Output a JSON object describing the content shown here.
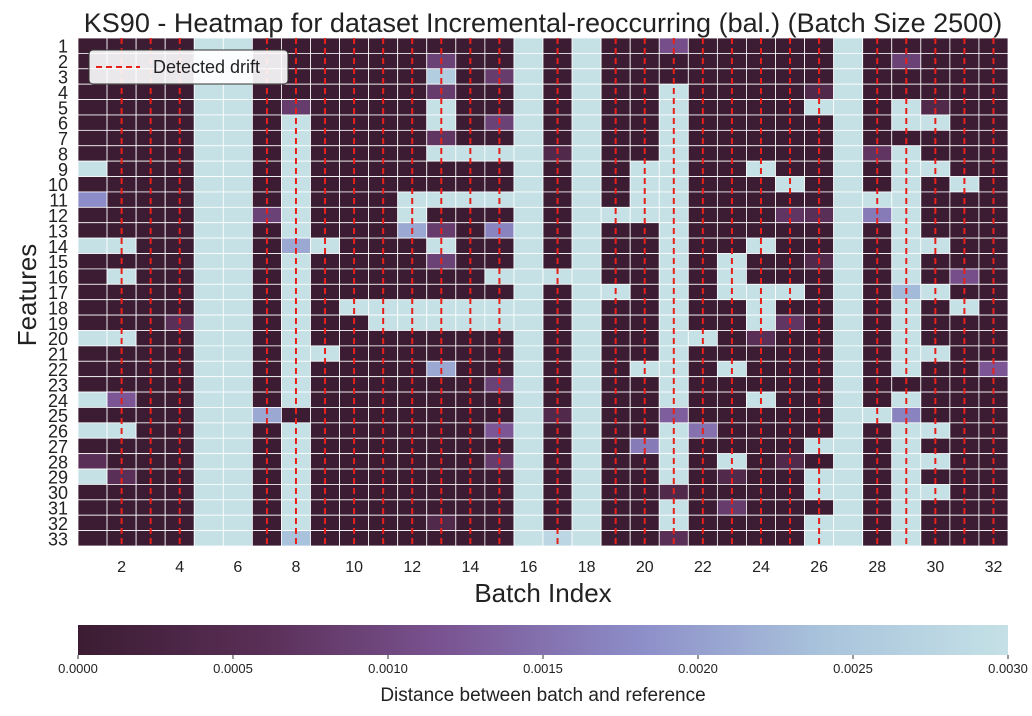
{
  "chart_data": {
    "type": "heatmap",
    "title": "KS90 - Heatmap for dataset Incremental-reoccurring (bal.) (Batch Size 2500)",
    "xlabel": "Batch Index",
    "ylabel": "Features",
    "x_categories": [
      1,
      2,
      3,
      4,
      5,
      6,
      7,
      8,
      9,
      10,
      11,
      12,
      13,
      14,
      15,
      16,
      17,
      18,
      19,
      20,
      21,
      22,
      23,
      24,
      25,
      26,
      27,
      28,
      29,
      30,
      31,
      32
    ],
    "x_tick_labels": [
      "2",
      "4",
      "6",
      "8",
      "10",
      "12",
      "14",
      "16",
      "18",
      "20",
      "22",
      "24",
      "26",
      "28",
      "30",
      "32"
    ],
    "y_categories": [
      "1",
      "2",
      "3",
      "4",
      "5",
      "6",
      "7",
      "8",
      "9",
      "10",
      "11",
      "12",
      "13",
      "14",
      "15",
      "16",
      "17",
      "18",
      "19",
      "20",
      "21",
      "22",
      "23",
      "24",
      "25",
      "26",
      "27",
      "28",
      "29",
      "30",
      "31",
      "32",
      "33"
    ],
    "color_scale": {
      "label": "Distance between batch and reference",
      "min": 0.0,
      "max": 0.003,
      "tick_labels": [
        "0.0000",
        "0.0005",
        "0.0010",
        "0.0015",
        "0.0020",
        "0.0025",
        "0.0030"
      ],
      "colors": [
        "#3b1c32",
        "#5a2f57",
        "#7b5594",
        "#8c8dc8",
        "#a9c3dc",
        "#c5e1e6"
      ],
      "orientation": "horizontal"
    },
    "legend": {
      "placement": "top-left",
      "entries": [
        "Detected drift"
      ]
    },
    "drift_color": "#e8201a",
    "detected_drift_batches": [
      2,
      3,
      4,
      7,
      8,
      9,
      10,
      11,
      12,
      13,
      14,
      15,
      17,
      19,
      20,
      21,
      22,
      23,
      24,
      25,
      26,
      28,
      29,
      30,
      31,
      32
    ],
    "grid": true,
    "values": [
      [
        0.0,
        0.0,
        0.0,
        0.0,
        0.003,
        0.003,
        0.0,
        0.0,
        0.0,
        0.0,
        0.0,
        0.0,
        0.0,
        0.0,
        0.0,
        0.003,
        0.0,
        0.003,
        0.0,
        0.0,
        0.0011,
        0.0,
        0.0,
        0.0,
        0.0,
        0.0,
        0.003,
        0.0,
        0.0,
        0.0,
        0.0,
        0.0
      ],
      [
        0.0,
        0.0,
        0.0,
        0.0,
        0.003,
        0.003,
        0.0,
        0.0,
        0.0,
        0.0,
        0.0,
        0.0,
        0.0009,
        0.0,
        0.0,
        0.003,
        0.0,
        0.003,
        0.0,
        0.0,
        0.0,
        0.0,
        0.0,
        0.0,
        0.0,
        0.0,
        0.003,
        0.0,
        0.0009,
        0.0,
        0.0,
        0.0
      ],
      [
        0.0,
        0.0,
        0.0,
        0.0,
        0.003,
        0.003,
        0.0,
        0.0,
        0.0,
        0.0,
        0.0,
        0.0,
        0.0026,
        0.0,
        0.0008,
        0.003,
        0.0,
        0.003,
        0.0,
        0.0,
        0.0,
        0.0,
        0.0,
        0.0,
        0.0,
        0.0,
        0.003,
        0.0,
        0.0,
        0.0,
        0.0,
        0.0
      ],
      [
        0.0,
        0.0,
        0.0,
        0.0,
        0.003,
        0.003,
        0.0,
        0.0,
        0.0,
        0.0,
        0.0,
        0.0,
        0.0008,
        0.0,
        0.0,
        0.003,
        0.0,
        0.003,
        0.0,
        0.0,
        0.003,
        0.0,
        0.0,
        0.0,
        0.0,
        0.0004,
        0.003,
        0.0,
        0.0,
        0.0,
        0.0,
        0.0
      ],
      [
        0.0,
        0.0,
        0.0,
        0.0,
        0.003,
        0.003,
        0.0,
        0.0008,
        0.0,
        0.0,
        0.0,
        0.0,
        0.003,
        0.0,
        0.0,
        0.003,
        0.0,
        0.003,
        0.0,
        0.0,
        0.003,
        0.0,
        0.0,
        0.0,
        0.0,
        0.003,
        0.003,
        0.0,
        0.003,
        0.0004,
        0.0,
        0.0
      ],
      [
        0.0,
        0.0,
        0.0,
        0.0,
        0.003,
        0.003,
        0.0,
        0.003,
        0.0,
        0.0,
        0.0,
        0.0,
        0.003,
        0.0,
        0.0009,
        0.003,
        0.0,
        0.003,
        0.0,
        0.0,
        0.003,
        0.0,
        0.0,
        0.0,
        0.0,
        0.0,
        0.003,
        0.0,
        0.003,
        0.003,
        0.0,
        0.0
      ],
      [
        0.0,
        0.0,
        0.0,
        0.0,
        0.003,
        0.003,
        0.0,
        0.003,
        0.0,
        0.0,
        0.0,
        0.0,
        0.0007,
        0.0,
        0.0,
        0.003,
        0.0,
        0.003,
        0.0,
        0.0,
        0.003,
        0.0,
        0.0,
        0.0,
        0.0,
        0.0,
        0.003,
        0.0,
        0.0,
        0.0,
        0.0,
        0.0
      ],
      [
        0.0,
        0.0,
        0.0,
        0.0,
        0.003,
        0.003,
        0.0,
        0.003,
        0.0,
        0.0,
        0.0,
        0.0,
        0.003,
        0.003,
        0.003,
        0.003,
        0.0004,
        0.003,
        0.0,
        0.0,
        0.003,
        0.0,
        0.0,
        0.0,
        0.0,
        0.0,
        0.003,
        0.0007,
        0.003,
        0.0,
        0.0,
        0.0
      ],
      [
        0.003,
        0.0,
        0.0,
        0.0,
        0.003,
        0.003,
        0.0,
        0.003,
        0.0,
        0.0,
        0.0,
        0.0,
        0.0,
        0.0,
        0.0,
        0.003,
        0.0,
        0.003,
        0.0,
        0.003,
        0.003,
        0.0,
        0.0,
        0.003,
        0.0,
        0.0,
        0.003,
        0.0,
        0.003,
        0.003,
        0.0,
        0.0
      ],
      [
        0.0,
        0.0,
        0.0,
        0.0,
        0.003,
        0.003,
        0.0,
        0.003,
        0.0,
        0.0,
        0.0,
        0.0,
        0.0,
        0.0,
        0.0,
        0.003,
        0.0,
        0.003,
        0.0,
        0.003,
        0.003,
        0.0,
        0.0,
        0.0,
        0.003,
        0.0,
        0.003,
        0.0,
        0.003,
        0.0,
        0.003,
        0.0
      ],
      [
        0.0018,
        0.0,
        0.0,
        0.0,
        0.003,
        0.003,
        0.0,
        0.003,
        0.0,
        0.0,
        0.0,
        0.003,
        0.003,
        0.003,
        0.003,
        0.003,
        0.0,
        0.003,
        0.0,
        0.003,
        0.003,
        0.0,
        0.0,
        0.0,
        0.0,
        0.0,
        0.003,
        0.003,
        0.003,
        0.0,
        0.0,
        0.0
      ],
      [
        0.0,
        0.0,
        0.0,
        0.0,
        0.003,
        0.003,
        0.0009,
        0.003,
        0.0,
        0.0,
        0.0,
        0.003,
        0.0,
        0.0,
        0.0,
        0.003,
        0.0,
        0.003,
        0.003,
        0.003,
        0.003,
        0.0,
        0.0,
        0.0,
        0.0007,
        0.0006,
        0.003,
        0.0016,
        0.003,
        0.0,
        0.0,
        0.0
      ],
      [
        0.0,
        0.0,
        0.0,
        0.0,
        0.003,
        0.003,
        0.0,
        0.003,
        0.0,
        0.0,
        0.0,
        0.0021,
        0.0008,
        0.0,
        0.0017,
        0.003,
        0.0,
        0.003,
        0.0,
        0.0,
        0.003,
        0.0,
        0.0,
        0.0,
        0.0,
        0.0,
        0.003,
        0.0,
        0.003,
        0.0,
        0.0,
        0.0
      ],
      [
        0.003,
        0.003,
        0.0,
        0.0,
        0.003,
        0.003,
        0.0,
        0.0021,
        0.003,
        0.0,
        0.0,
        0.0,
        0.003,
        0.0,
        0.0,
        0.003,
        0.0,
        0.003,
        0.0,
        0.0,
        0.003,
        0.0,
        0.0,
        0.003,
        0.0,
        0.0,
        0.003,
        0.0,
        0.003,
        0.003,
        0.0,
        0.0
      ],
      [
        0.0,
        0.0,
        0.0,
        0.0,
        0.003,
        0.003,
        0.0,
        0.003,
        0.0,
        0.0,
        0.0,
        0.0,
        0.0009,
        0.0,
        0.0,
        0.003,
        0.0,
        0.003,
        0.0,
        0.0,
        0.003,
        0.0,
        0.003,
        0.0,
        0.0,
        0.0004,
        0.003,
        0.0,
        0.003,
        0.0,
        0.0,
        0.0
      ],
      [
        0.0,
        0.003,
        0.0,
        0.0,
        0.003,
        0.003,
        0.0,
        0.003,
        0.0,
        0.0,
        0.0,
        0.0,
        0.0,
        0.0,
        0.003,
        0.003,
        0.003,
        0.003,
        0.0,
        0.0,
        0.003,
        0.0,
        0.003,
        0.0,
        0.0,
        0.0,
        0.003,
        0.0,
        0.003,
        0.0,
        0.0011,
        0.0
      ],
      [
        0.0,
        0.0,
        0.0,
        0.0,
        0.003,
        0.003,
        0.0,
        0.003,
        0.0,
        0.0,
        0.0,
        0.0,
        0.0,
        0.0,
        0.0,
        0.003,
        0.0,
        0.003,
        0.003,
        0.0,
        0.003,
        0.0,
        0.003,
        0.003,
        0.003,
        0.0,
        0.003,
        0.0,
        0.0023,
        0.003,
        0.0,
        0.0
      ],
      [
        0.0,
        0.0,
        0.0,
        0.0,
        0.003,
        0.003,
        0.0,
        0.003,
        0.0,
        0.003,
        0.003,
        0.003,
        0.003,
        0.003,
        0.003,
        0.003,
        0.0,
        0.003,
        0.0,
        0.0,
        0.003,
        0.0,
        0.0,
        0.003,
        0.0,
        0.0,
        0.003,
        0.0,
        0.003,
        0.0,
        0.003,
        0.0
      ],
      [
        0.0,
        0.0,
        0.0,
        0.0006,
        0.003,
        0.003,
        0.0,
        0.003,
        0.0,
        0.0,
        0.003,
        0.003,
        0.003,
        0.003,
        0.003,
        0.003,
        0.0,
        0.003,
        0.0,
        0.0,
        0.003,
        0.0,
        0.0,
        0.003,
        0.0007,
        0.0,
        0.003,
        0.0,
        0.003,
        0.0,
        0.0,
        0.0
      ],
      [
        0.003,
        0.003,
        0.0,
        0.0,
        0.003,
        0.003,
        0.0,
        0.003,
        0.0,
        0.0,
        0.0,
        0.0,
        0.0,
        0.0,
        0.0,
        0.003,
        0.0,
        0.003,
        0.0,
        0.0,
        0.003,
        0.003,
        0.0,
        0.0006,
        0.0,
        0.0,
        0.003,
        0.0,
        0.003,
        0.0,
        0.0,
        0.0
      ],
      [
        0.0,
        0.0,
        0.0,
        0.0,
        0.003,
        0.003,
        0.0,
        0.003,
        0.003,
        0.0,
        0.0,
        0.0,
        0.0,
        0.0,
        0.0,
        0.003,
        0.0,
        0.003,
        0.0,
        0.0,
        0.003,
        0.0,
        0.0,
        0.0,
        0.0,
        0.0,
        0.003,
        0.0,
        0.003,
        0.003,
        0.0,
        0.0
      ],
      [
        0.0,
        0.0,
        0.0,
        0.0,
        0.003,
        0.003,
        0.0,
        0.003,
        0.0,
        0.0,
        0.0,
        0.0,
        0.0021,
        0.0,
        0.0,
        0.003,
        0.0,
        0.003,
        0.0,
        0.003,
        0.003,
        0.0,
        0.003,
        0.0,
        0.0,
        0.0,
        0.003,
        0.0,
        0.003,
        0.0,
        0.0,
        0.0012
      ],
      [
        0.0,
        0.0,
        0.0,
        0.0,
        0.003,
        0.003,
        0.0,
        0.003,
        0.0,
        0.0,
        0.0,
        0.0,
        0.0,
        0.0,
        0.0009,
        0.003,
        0.0,
        0.003,
        0.0,
        0.0,
        0.003,
        0.0,
        0.0,
        0.0,
        0.0,
        0.0,
        0.003,
        0.0,
        0.0,
        0.0,
        0.0,
        0.0
      ],
      [
        0.003,
        0.0012,
        0.0,
        0.0,
        0.003,
        0.003,
        0.0,
        0.003,
        0.0,
        0.0,
        0.0,
        0.0,
        0.0,
        0.0,
        0.0,
        0.003,
        0.0,
        0.003,
        0.0,
        0.0,
        0.003,
        0.0,
        0.0,
        0.003,
        0.0,
        0.0,
        0.003,
        0.0,
        0.003,
        0.0,
        0.0,
        0.0
      ],
      [
        0.0,
        0.0,
        0.0,
        0.0,
        0.003,
        0.003,
        0.0021,
        0.0,
        0.0,
        0.0,
        0.0,
        0.0,
        0.0,
        0.0,
        0.0,
        0.003,
        0.0004,
        0.003,
        0.0,
        0.0,
        0.0013,
        0.0,
        0.0,
        0.0,
        0.0,
        0.0,
        0.003,
        0.003,
        0.0017,
        0.0,
        0.0,
        0.0
      ],
      [
        0.003,
        0.003,
        0.0,
        0.0,
        0.003,
        0.003,
        0.0,
        0.003,
        0.0,
        0.0,
        0.0,
        0.0,
        0.0,
        0.0,
        0.0012,
        0.003,
        0.0,
        0.003,
        0.0,
        0.0,
        0.003,
        0.0015,
        0.0,
        0.0,
        0.0,
        0.0,
        0.003,
        0.0,
        0.003,
        0.003,
        0.0,
        0.0
      ],
      [
        0.0,
        0.0,
        0.0,
        0.0,
        0.003,
        0.003,
        0.0,
        0.003,
        0.0,
        0.0,
        0.0,
        0.0,
        0.0,
        0.0,
        0.0,
        0.003,
        0.0,
        0.003,
        0.0,
        0.0016,
        0.003,
        0.0,
        0.0,
        0.0,
        0.0,
        0.003,
        0.003,
        0.0,
        0.003,
        0.0,
        0.0,
        0.0
      ],
      [
        0.0006,
        0.0,
        0.0,
        0.0,
        0.003,
        0.003,
        0.0,
        0.003,
        0.0,
        0.0,
        0.0,
        0.0,
        0.0,
        0.0,
        0.0008,
        0.003,
        0.0,
        0.003,
        0.0,
        0.0,
        0.003,
        0.0,
        0.003,
        0.0,
        0.0004,
        0.0,
        0.003,
        0.0,
        0.003,
        0.003,
        0.0,
        0.0
      ],
      [
        0.003,
        0.0006,
        0.0,
        0.0,
        0.003,
        0.003,
        0.0,
        0.003,
        0.0,
        0.0,
        0.0,
        0.0,
        0.0,
        0.0,
        0.0,
        0.003,
        0.0,
        0.003,
        0.0,
        0.0,
        0.003,
        0.0,
        0.0004,
        0.0,
        0.0,
        0.003,
        0.003,
        0.0,
        0.003,
        0.0,
        0.0,
        0.0
      ],
      [
        0.0,
        0.0,
        0.0,
        0.0,
        0.003,
        0.003,
        0.0,
        0.003,
        0.0,
        0.0,
        0.0,
        0.0,
        0.0,
        0.0,
        0.0,
        0.003,
        0.0,
        0.003,
        0.0,
        0.0,
        0.0004,
        0.0,
        0.0,
        0.0,
        0.0,
        0.003,
        0.003,
        0.0,
        0.003,
        0.003,
        0.0,
        0.0
      ],
      [
        0.0,
        0.0,
        0.0,
        0.0,
        0.003,
        0.003,
        0.0,
        0.003,
        0.0,
        0.0,
        0.0,
        0.0,
        0.0,
        0.0,
        0.0,
        0.003,
        0.0,
        0.003,
        0.0,
        0.0,
        0.003,
        0.0,
        0.0008,
        0.0,
        0.0,
        0.0,
        0.003,
        0.0,
        0.003,
        0.0,
        0.0,
        0.0
      ],
      [
        0.0,
        0.0,
        0.0,
        0.0,
        0.003,
        0.003,
        0.0,
        0.003,
        0.0,
        0.0,
        0.0,
        0.0,
        0.0004,
        0.0,
        0.0,
        0.003,
        0.0,
        0.003,
        0.0,
        0.0,
        0.003,
        0.0,
        0.0,
        0.0,
        0.0,
        0.003,
        0.003,
        0.0,
        0.003,
        0.0,
        0.0,
        0.0
      ],
      [
        0.0,
        0.0,
        0.0,
        0.0,
        0.003,
        0.003,
        0.0,
        0.0024,
        0.0,
        0.0,
        0.0,
        0.0,
        0.0,
        0.0,
        0.0,
        0.003,
        0.0028,
        0.003,
        0.0,
        0.0,
        0.0006,
        0.0,
        0.0,
        0.0,
        0.0,
        0.003,
        0.003,
        0.0,
        0.003,
        0.0,
        0.0,
        0.0
      ]
    ]
  }
}
